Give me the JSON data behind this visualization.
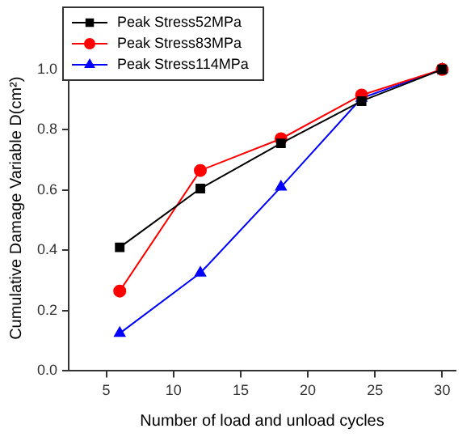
{
  "chart_data": {
    "type": "line",
    "xlabel": "Number of load and unload cycles",
    "ylabel": "Cumulative Damage Variable D(cm²)",
    "x": [
      6,
      12,
      18,
      24,
      30
    ],
    "series": [
      {
        "name": "Peak Stress52MPa",
        "color": "#000000",
        "marker": "square",
        "values": [
          0.41,
          0.605,
          0.755,
          0.895,
          1.0
        ]
      },
      {
        "name": "Peak Stress83MPa",
        "color": "#ff0000",
        "marker": "circle",
        "values": [
          0.265,
          0.665,
          0.77,
          0.915,
          1.0
        ]
      },
      {
        "name": "Peak Stress114MPa",
        "color": "#0000ff",
        "marker": "triangle",
        "values": [
          0.125,
          0.325,
          0.61,
          0.905,
          1.0
        ]
      }
    ],
    "xlim": [
      2.2,
      31
    ],
    "xticks": [
      5,
      10,
      15,
      20,
      25,
      30
    ],
    "ylim": [
      0,
      1.08
    ],
    "yticks": [
      {
        "value": 0,
        "label": "0.0"
      },
      0.2,
      0.4,
      0.6,
      0.8,
      {
        "value": 1,
        "label": "1.0"
      }
    ],
    "grid": false,
    "legend": "top left"
  }
}
